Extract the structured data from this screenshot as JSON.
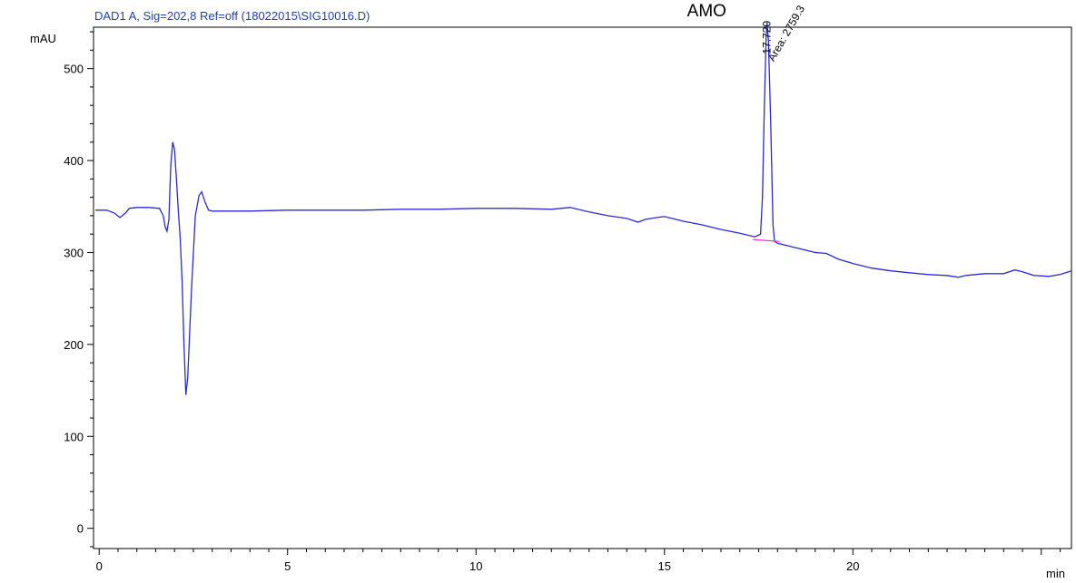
{
  "header": {
    "signal_title": "DAD1 A, Sig=202,8 Ref=off (18022015\\SIG10016.D)"
  },
  "chart_data": {
    "type": "line",
    "title": "DAD1 A, Sig=202,8 Ref=off (18022015\\SIG10016.D)",
    "xlabel": "min",
    "ylabel": "mAU",
    "xlim": [
      -0.15,
      25.8
    ],
    "ylim": [
      -22,
      545
    ],
    "x_ticks": [
      0,
      5,
      10,
      15,
      20
    ],
    "y_ticks": [
      0,
      100,
      200,
      300,
      400,
      500
    ],
    "grid": false,
    "colors": {
      "trace": "#2b2bd6",
      "baseline": "#ff33cc",
      "header": "#1f3fbf"
    },
    "series": [
      {
        "points": [
          [
            -0.1,
            346
          ],
          [
            0.2,
            346
          ],
          [
            0.4,
            343
          ],
          [
            0.55,
            338
          ],
          [
            0.7,
            343
          ],
          [
            0.8,
            348
          ],
          [
            1.0,
            349
          ],
          [
            1.3,
            349
          ],
          [
            1.6,
            348
          ],
          [
            1.7,
            340
          ],
          [
            1.75,
            328
          ],
          [
            1.8,
            323
          ],
          [
            1.85,
            336
          ],
          [
            1.9,
            395
          ],
          [
            1.95,
            420
          ],
          [
            2.0,
            412
          ],
          [
            2.05,
            380
          ],
          [
            2.1,
            345
          ],
          [
            2.15,
            315
          ],
          [
            2.2,
            270
          ],
          [
            2.25,
            200
          ],
          [
            2.3,
            145
          ],
          [
            2.35,
            165
          ],
          [
            2.45,
            260
          ],
          [
            2.55,
            340
          ],
          [
            2.65,
            362
          ],
          [
            2.72,
            366
          ],
          [
            2.8,
            356
          ],
          [
            2.9,
            346
          ],
          [
            3.0,
            345
          ],
          [
            3.5,
            345
          ],
          [
            4.0,
            345
          ],
          [
            5.0,
            346
          ],
          [
            6.0,
            346
          ],
          [
            7.0,
            346
          ],
          [
            8.0,
            347
          ],
          [
            9.0,
            347
          ],
          [
            10.0,
            348
          ],
          [
            11.0,
            348
          ],
          [
            12.0,
            347
          ],
          [
            12.5,
            349
          ],
          [
            13.0,
            344
          ],
          [
            13.5,
            340
          ],
          [
            14.0,
            337
          ],
          [
            14.3,
            333
          ],
          [
            14.5,
            336
          ],
          [
            14.8,
            338
          ],
          [
            15.0,
            339
          ],
          [
            15.2,
            337
          ],
          [
            15.5,
            334
          ],
          [
            16.0,
            330
          ],
          [
            16.5,
            325
          ],
          [
            17.0,
            321
          ],
          [
            17.4,
            317
          ],
          [
            17.55,
            320
          ],
          [
            17.6,
            360
          ],
          [
            17.65,
            460
          ],
          [
            17.7,
            535
          ],
          [
            17.72,
            550
          ],
          [
            17.76,
            530
          ],
          [
            17.82,
            440
          ],
          [
            17.88,
            330
          ],
          [
            17.92,
            312
          ],
          [
            18.0,
            310
          ],
          [
            18.5,
            305
          ],
          [
            19.0,
            300
          ],
          [
            19.3,
            299
          ],
          [
            19.6,
            293
          ],
          [
            20.0,
            288
          ],
          [
            20.5,
            283
          ],
          [
            21.0,
            280
          ],
          [
            21.5,
            278
          ],
          [
            22.0,
            276
          ],
          [
            22.5,
            275
          ],
          [
            22.8,
            273
          ],
          [
            23.0,
            275
          ],
          [
            23.5,
            277
          ],
          [
            24.0,
            277
          ],
          [
            24.3,
            281
          ],
          [
            24.5,
            279
          ],
          [
            24.8,
            275
          ],
          [
            25.2,
            274
          ],
          [
            25.5,
            276
          ],
          [
            25.8,
            280
          ]
        ]
      }
    ],
    "peak_baseline": [
      [
        17.35,
        314
      ],
      [
        18.05,
        312
      ]
    ],
    "annotations": {
      "peak_name": {
        "text": "AMO",
        "x": 15.6,
        "y": 557
      },
      "retention_time": {
        "text": "17.720",
        "x": 17.72,
        "y": 552
      },
      "area": {
        "text": "Area: 2759.3",
        "x": 17.9,
        "y": 507
      }
    }
  }
}
